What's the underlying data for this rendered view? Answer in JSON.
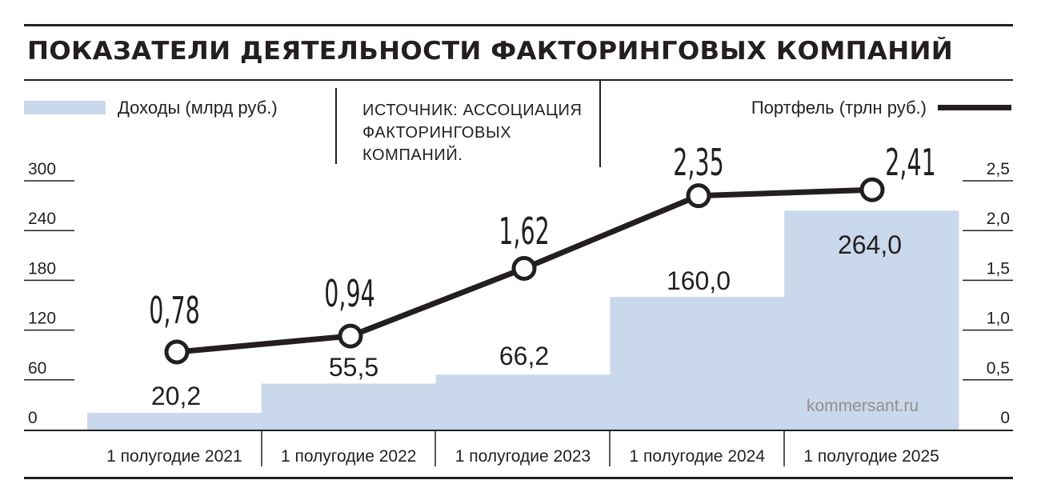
{
  "title": "ПОКАЗАТЕЛИ ДЕЯТЕЛЬНОСТИ ФАКТОРИНГОВЫХ КОМПАНИЙ",
  "source": "ИСТОЧНИК: АССОЦИАЦИЯ ФАКТОРИНГОВЫХ КОМПАНИЙ.",
  "watermark": "kommersant.ru",
  "colors": {
    "bar": "#c9d8ea",
    "line": "#231f20",
    "text": "#231f20"
  },
  "chart_data": {
    "type": "bar",
    "categories": [
      "1 полугодие 2021",
      "1 полугодие 2022",
      "1 полугодие 2023",
      "1 полугодие 2024",
      "1 полугодие 2025"
    ],
    "series": [
      {
        "name": "Доходы (млрд руб.)",
        "type": "bar",
        "axis": "left",
        "values": [
          20.2,
          55.5,
          66.2,
          160.0,
          264.0
        ],
        "labels": [
          "20,2",
          "55,5",
          "66,2",
          "160,0",
          "264,0"
        ]
      },
      {
        "name": "Портфель (трлн руб.)",
        "type": "line",
        "axis": "right",
        "values": [
          0.78,
          0.94,
          1.62,
          2.35,
          2.41
        ],
        "labels": [
          "0,78",
          "0,94",
          "1,62",
          "2,35",
          "2,41"
        ]
      }
    ],
    "y_left": {
      "ylim": [
        0,
        300
      ],
      "ticks": [
        "0",
        "60",
        "120",
        "180",
        "240",
        "300"
      ]
    },
    "y_right": {
      "ylim": [
        0,
        2.5
      ],
      "ticks": [
        "0",
        "0,5",
        "1,0",
        "1,5",
        "2,0",
        "2,5"
      ]
    },
    "legend": "top"
  }
}
